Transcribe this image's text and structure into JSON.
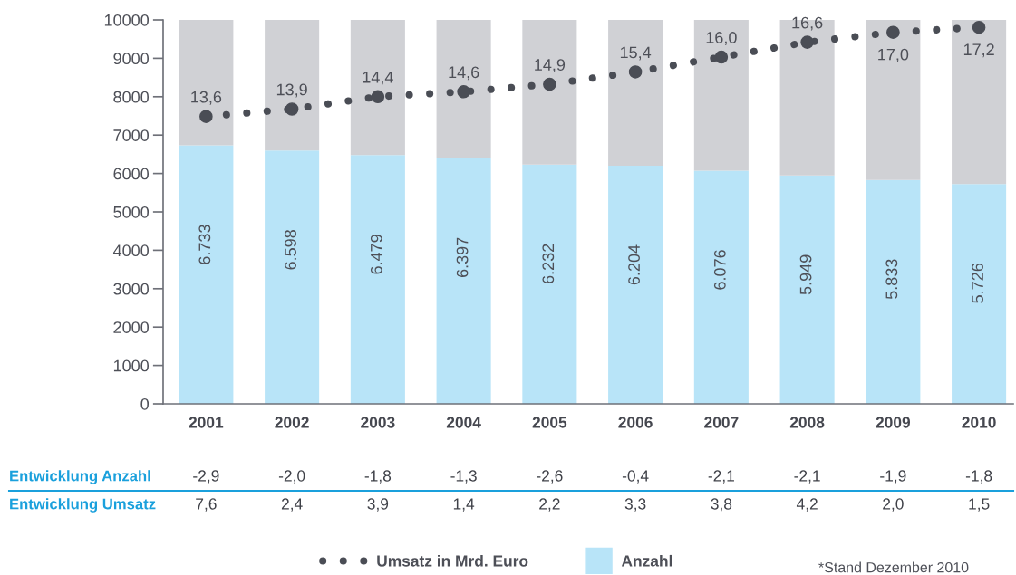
{
  "chart_data": {
    "type": "bar",
    "stacked": true,
    "categories": [
      "2001",
      "2002",
      "2003",
      "2004",
      "2005",
      "2006",
      "2007",
      "2008",
      "2009",
      "2010"
    ],
    "series": [
      {
        "name": "Umsatz in Mrd. Euro",
        "type": "line",
        "axis": "y2",
        "color": "#4a4d55",
        "values": [
          13.6,
          13.9,
          14.4,
          14.6,
          14.9,
          15.4,
          16.0,
          16.6,
          17.0,
          17.2
        ],
        "value_labels": [
          "13,6",
          "13,9",
          "14,4",
          "14,6",
          "14,9",
          "15,4",
          "16,0",
          "16,6",
          "17,0",
          "17,2"
        ]
      },
      {
        "name": "Anzahl",
        "color": "#b8e4f8",
        "values": [
          6733,
          6598,
          6479,
          6397,
          6232,
          6204,
          6076,
          5949,
          5833,
          5726
        ],
        "value_labels": [
          "6.733",
          "6.598",
          "6.479",
          "6.397",
          "6.232",
          "6.204",
          "6.076",
          "5.949",
          "5.833",
          "5.726"
        ]
      },
      {
        "color": "#d0d1d5",
        "values": [
          3267,
          3402,
          3521,
          3603,
          3768,
          3796,
          3924,
          4051,
          4167,
          4274
        ]
      }
    ],
    "marker": "circle",
    "line_style": "dotted",
    "ylim": [
      0,
      10000
    ],
    "yticks": [
      0,
      1000,
      2000,
      3000,
      4000,
      5000,
      6000,
      7000,
      8000,
      9000,
      10000
    ],
    "y2lim": [
      2,
      17.5
    ],
    "legend": "bottom",
    "annotations": [
      "Entwicklung Anzahl",
      "-2,9",
      "-2,0",
      "-1,8",
      "-1,3",
      "-2,6",
      "-0,4",
      "-2,1",
      "-2,1",
      "-1,9",
      "-1,8",
      "Entwicklung Umsatz",
      "7,6",
      "2,4",
      "3,9",
      "1,4",
      "2,2",
      "3,3",
      "3,8",
      "4,2",
      "2,0",
      "1,5",
      "*Stand Dezember 2010"
    ]
  }
}
